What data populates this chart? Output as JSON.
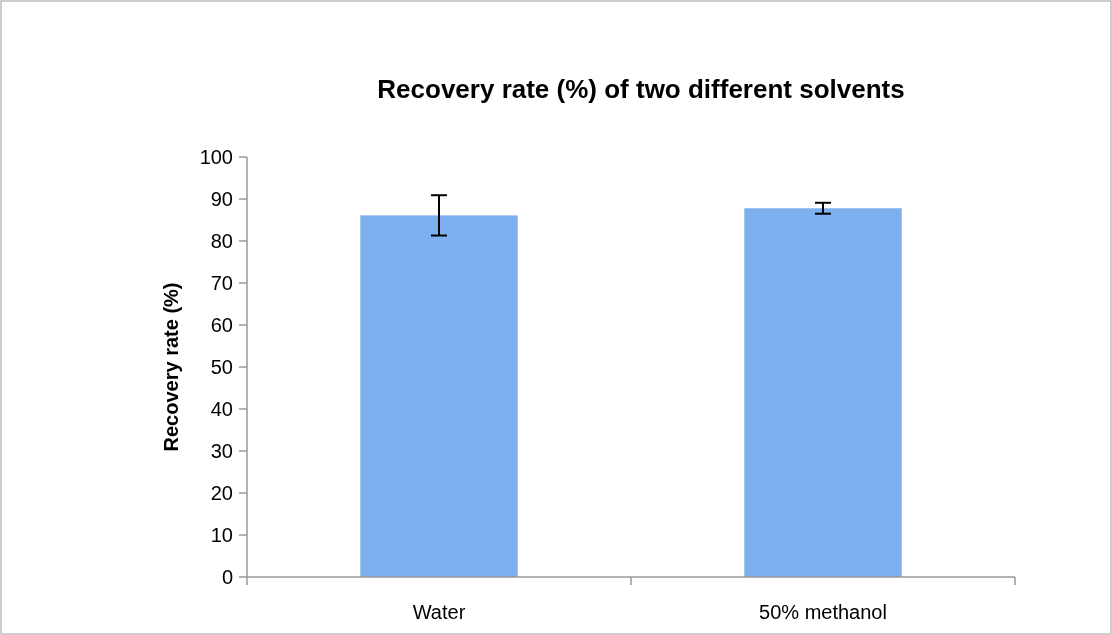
{
  "chart_data": {
    "type": "bar",
    "title": "Recovery rate (%) of two different solvents",
    "ylabel": "Recovery rate (%)",
    "categories": [
      "Water",
      "50% methanol"
    ],
    "values": [
      86.1,
      87.8
    ],
    "errors": [
      4.8,
      1.3
    ],
    "color": "#7db0ef",
    "ylim": [
      0,
      100
    ],
    "yticks": [
      0,
      10,
      20,
      30,
      40,
      50,
      60,
      70,
      80,
      90,
      100
    ],
    "grid": false
  }
}
